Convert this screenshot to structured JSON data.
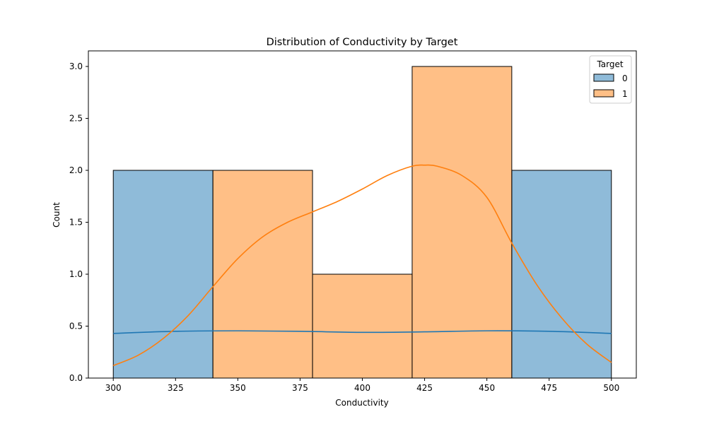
{
  "chart_data": {
    "type": "histogram",
    "title": "Distribution of Conductivity by Target",
    "xlabel": "Conductivity",
    "ylabel": "Count",
    "xlim": [
      290,
      510
    ],
    "ylim": [
      0,
      3.15
    ],
    "x_ticks": [
      300,
      325,
      350,
      375,
      400,
      425,
      450,
      475,
      500
    ],
    "y_ticks": [
      0.0,
      0.5,
      1.0,
      1.5,
      2.0,
      2.5,
      3.0
    ],
    "y_tick_labels": [
      "0.0",
      "0.5",
      "1.0",
      "1.5",
      "2.0",
      "2.5",
      "3.0"
    ],
    "grid": false,
    "legend": {
      "title": "Target",
      "position": "top-right",
      "entries": [
        {
          "label": "0",
          "color": "#1f77b4"
        },
        {
          "label": "1",
          "color": "#ff7f0e"
        }
      ]
    },
    "series": [
      {
        "name": "0",
        "color": "#1f77b4",
        "bins": [
          {
            "x0": 300,
            "x1": 340,
            "count": 2
          },
          {
            "x0": 460,
            "x1": 500,
            "count": 2
          }
        ],
        "kde": [
          [
            300,
            0.43
          ],
          [
            325,
            0.45
          ],
          [
            350,
            0.455
          ],
          [
            375,
            0.45
          ],
          [
            400,
            0.44
          ],
          [
            425,
            0.445
          ],
          [
            450,
            0.455
          ],
          [
            475,
            0.45
          ],
          [
            500,
            0.43
          ]
        ]
      },
      {
        "name": "1",
        "color": "#ff7f0e",
        "bins": [
          {
            "x0": 340,
            "x1": 380,
            "count": 2
          },
          {
            "x0": 380,
            "x1": 420,
            "count": 1
          },
          {
            "x0": 420,
            "x1": 460,
            "count": 3
          }
        ],
        "kde": [
          [
            300,
            0.12
          ],
          [
            310,
            0.22
          ],
          [
            320,
            0.38
          ],
          [
            330,
            0.6
          ],
          [
            340,
            0.88
          ],
          [
            350,
            1.15
          ],
          [
            360,
            1.36
          ],
          [
            370,
            1.5
          ],
          [
            380,
            1.6
          ],
          [
            390,
            1.7
          ],
          [
            400,
            1.82
          ],
          [
            410,
            1.95
          ],
          [
            420,
            2.04
          ],
          [
            425,
            2.05
          ],
          [
            430,
            2.04
          ],
          [
            440,
            1.95
          ],
          [
            450,
            1.74
          ],
          [
            460,
            1.3
          ],
          [
            470,
            0.9
          ],
          [
            480,
            0.58
          ],
          [
            490,
            0.33
          ],
          [
            500,
            0.15
          ]
        ]
      }
    ]
  }
}
